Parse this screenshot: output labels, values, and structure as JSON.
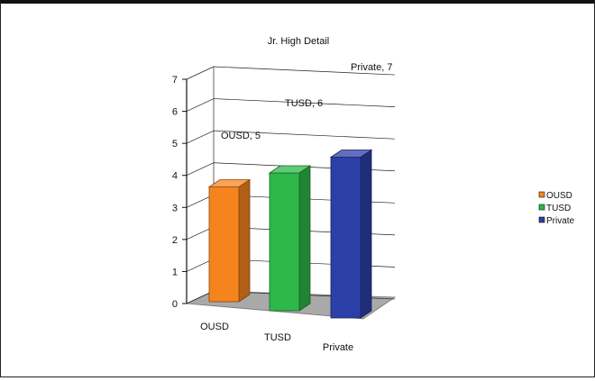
{
  "chart_data": {
    "type": "bar",
    "title": "Jr. High Detail",
    "categories": [
      "OUSD",
      "TUSD",
      "Private"
    ],
    "values": [
      5,
      6,
      7
    ],
    "data_labels": [
      "OUSD, 5",
      "TUSD, 6",
      "Private, 7"
    ],
    "yticks": [
      "0",
      "1",
      "2",
      "3",
      "4",
      "5",
      "6",
      "7"
    ],
    "ylim": [
      0,
      7
    ],
    "grid": true,
    "legend": {
      "position": "right",
      "entries": [
        "OUSD",
        "TUSD",
        "Private"
      ]
    },
    "colors": [
      "#f5841f",
      "#2eb84a",
      "#2c3fa8"
    ]
  }
}
